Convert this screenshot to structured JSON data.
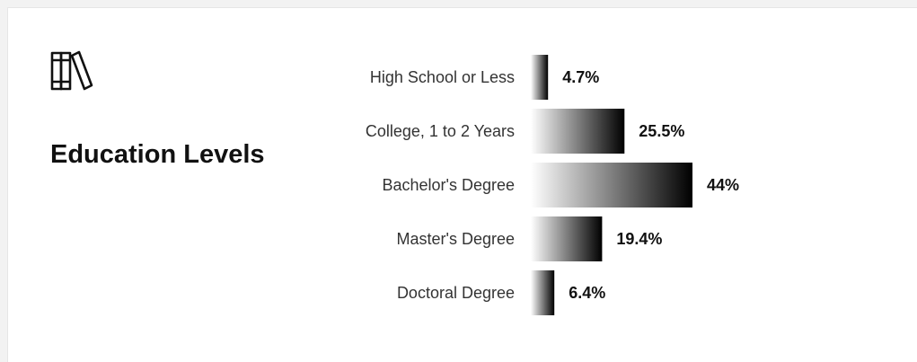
{
  "title": "Education Levels",
  "icon": "books-icon",
  "chart_data": {
    "type": "bar",
    "orientation": "horizontal",
    "title": "Education Levels",
    "categories": [
      "High School or Less",
      "College, 1 to 2 Years",
      "Bachelor's Degree",
      "Master's Degree",
      "Doctoral Degree"
    ],
    "values": [
      4.7,
      25.5,
      44,
      19.4,
      6.4
    ],
    "value_labels": [
      "4.7%",
      "25.5%",
      "44%",
      "19.4%",
      "6.4%"
    ],
    "unit": "%",
    "xlim": [
      0,
      44
    ],
    "xlabel": "",
    "ylabel": "",
    "grid": false,
    "legend": "none",
    "colors": {
      "bar_start": "#ffffff",
      "bar_end": "#000000",
      "label": "#333333",
      "value": "#111111"
    }
  }
}
